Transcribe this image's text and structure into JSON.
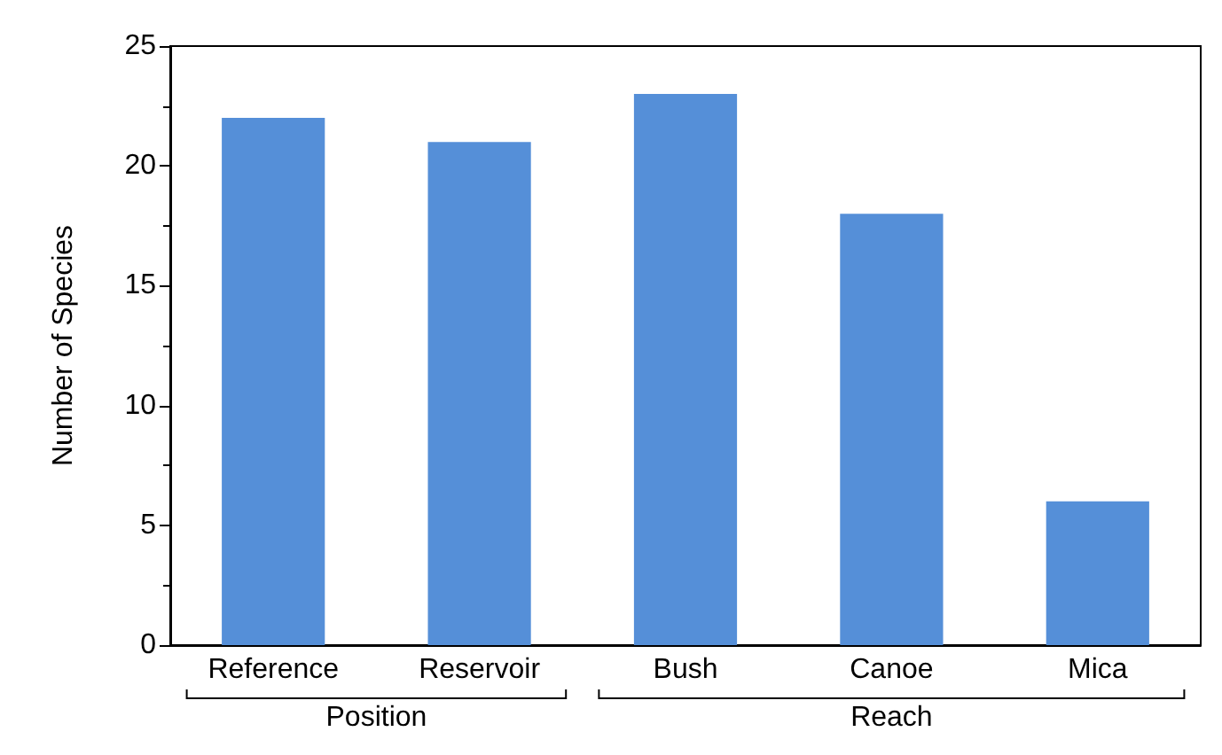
{
  "chart_data": {
    "type": "bar",
    "ylabel": "Number of Species",
    "categories": [
      "Reference",
      "Reservoir",
      "Bush",
      "Canoe",
      "Mica"
    ],
    "values": [
      22,
      21,
      23,
      18,
      6
    ],
    "color": "#558fd8",
    "ylim": [
      0,
      25
    ],
    "yticks": [
      0,
      5,
      10,
      15,
      20,
      25
    ],
    "grid": false,
    "annotations": [
      "Position",
      "Reach"
    ]
  }
}
